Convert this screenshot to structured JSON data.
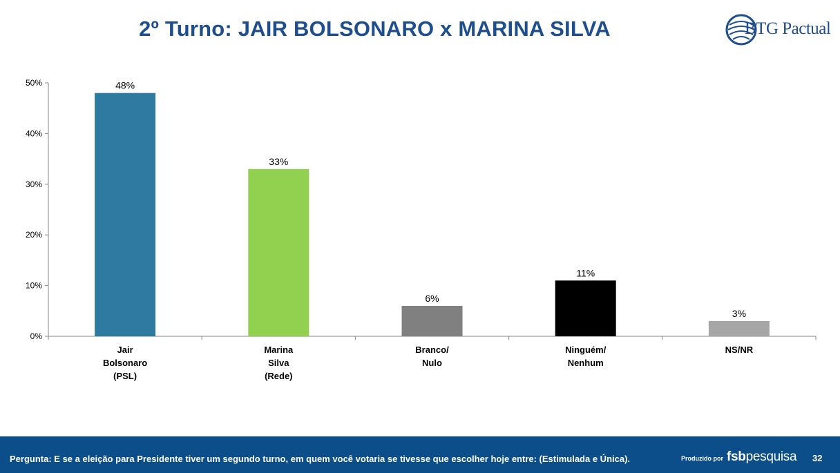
{
  "title": "2º Turno: JAIR BOLSONARO x MARINA SILVA",
  "logo": {
    "text": "BTG Pactual"
  },
  "chart_data": {
    "type": "bar",
    "categories": [
      [
        "Jair",
        "Bolsonaro",
        "(PSL)"
      ],
      [
        "Marina",
        "Silva",
        "(Rede)"
      ],
      [
        "Branco/",
        "Nulo"
      ],
      [
        "Ninguém/",
        "Nenhum"
      ],
      [
        "NS/NR"
      ]
    ],
    "values": [
      48,
      33,
      6,
      11,
      3
    ],
    "data_labels": [
      "48%",
      "33%",
      "6%",
      "11%",
      "3%"
    ],
    "colors": [
      "#2e7aa0",
      "#92d150",
      "#808080",
      "#000000",
      "#a6a6a6"
    ],
    "ylim": [
      0,
      50
    ],
    "yticks": [
      0,
      10,
      20,
      30,
      40,
      50
    ],
    "ytick_labels": [
      "0%",
      "10%",
      "20%",
      "30%",
      "40%",
      "50%"
    ],
    "grid": false,
    "legend": "none"
  },
  "footer": {
    "question": "Pergunta:  E se a eleição para Presidente tiver um segundo turno, em quem você votaria se tivesse que escolher hoje entre:  (Estimulada e Única).",
    "produced_by": "Produzido por",
    "brand_prefix": "fsb",
    "brand_suffix": "pesquisa",
    "page_number": "32"
  },
  "colors": {
    "title": "#1f4e8c",
    "footer_bg": "#0b4e89"
  }
}
